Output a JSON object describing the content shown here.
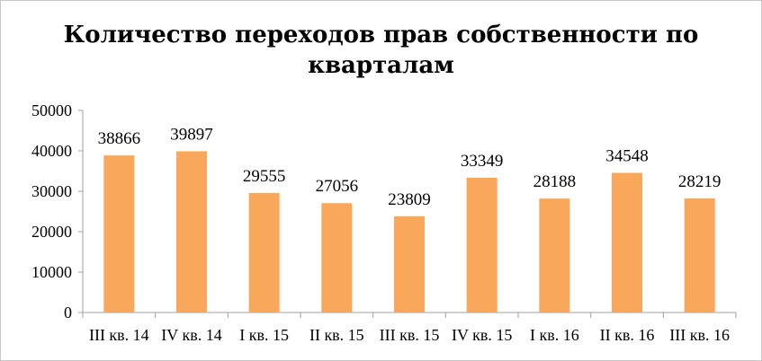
{
  "chart_data": {
    "type": "bar",
    "title": "Количество переходов прав собственности по кварталам",
    "categories": [
      "III кв. 14",
      "IV кв. 14",
      "I кв. 15",
      "II кв. 15",
      "III кв. 15",
      "IV кв. 15",
      "I кв. 16",
      "II кв. 16",
      "III кв. 16"
    ],
    "values": [
      38866,
      39897,
      29555,
      27056,
      23809,
      33349,
      28188,
      34548,
      28219
    ],
    "ylim": [
      0,
      50000
    ],
    "yticks": [
      0,
      10000,
      20000,
      30000,
      40000,
      50000
    ],
    "grid": false,
    "legend": "none",
    "colors": {
      "bar": "#f9a75a",
      "axis": "#a0a0a0"
    }
  }
}
